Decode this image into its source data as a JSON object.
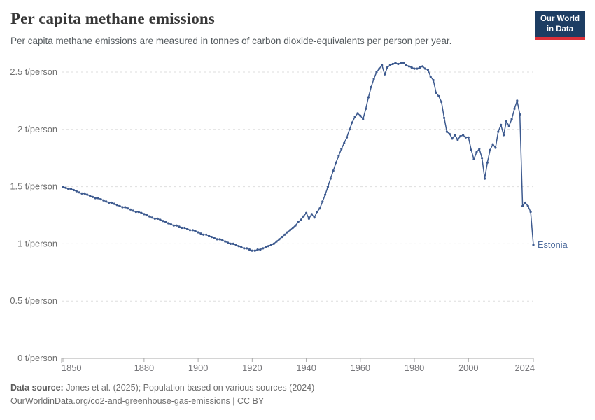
{
  "header": {
    "title": "Per capita methane emissions",
    "subtitle": "Per capita methane emissions are measured in tonnes of carbon dioxide-equivalents per person per year."
  },
  "logo": {
    "line1": "Our World",
    "line2": "in Data"
  },
  "chart_data": {
    "type": "line",
    "title": "Per capita methane emissions",
    "xlabel": "",
    "ylabel": "t/person",
    "xlim": [
      1850,
      2024
    ],
    "ylim": [
      0,
      2.5
    ],
    "grid": "horizontal-dashed",
    "legend_position": "end-of-line-label",
    "x_ticks": [
      {
        "value": 1850,
        "label": "1850"
      },
      {
        "value": 1880,
        "label": "1880"
      },
      {
        "value": 1900,
        "label": "1900"
      },
      {
        "value": 1920,
        "label": "1920"
      },
      {
        "value": 1940,
        "label": "1940"
      },
      {
        "value": 1960,
        "label": "1960"
      },
      {
        "value": 1980,
        "label": "1980"
      },
      {
        "value": 2000,
        "label": "2000"
      },
      {
        "value": 2024,
        "label": "2024"
      }
    ],
    "y_ticks": [
      {
        "value": 0,
        "label": "0 t/person"
      },
      {
        "value": 0.5,
        "label": "0.5 t/person"
      },
      {
        "value": 1,
        "label": "1 t/person"
      },
      {
        "value": 1.5,
        "label": "1.5 t/person"
      },
      {
        "value": 2,
        "label": "2 t/person"
      },
      {
        "value": 2.5,
        "label": "2.5 t/person"
      }
    ],
    "series": [
      {
        "name": "Estonia",
        "color": "#3d5a8f",
        "label_color": "#4c6a9c",
        "years": [
          1850,
          1851,
          1852,
          1853,
          1854,
          1855,
          1856,
          1857,
          1858,
          1859,
          1860,
          1861,
          1862,
          1863,
          1864,
          1865,
          1866,
          1867,
          1868,
          1869,
          1870,
          1871,
          1872,
          1873,
          1874,
          1875,
          1876,
          1877,
          1878,
          1879,
          1880,
          1881,
          1882,
          1883,
          1884,
          1885,
          1886,
          1887,
          1888,
          1889,
          1890,
          1891,
          1892,
          1893,
          1894,
          1895,
          1896,
          1897,
          1898,
          1899,
          1900,
          1901,
          1902,
          1903,
          1904,
          1905,
          1906,
          1907,
          1908,
          1909,
          1910,
          1911,
          1912,
          1913,
          1914,
          1915,
          1916,
          1917,
          1918,
          1919,
          1920,
          1921,
          1922,
          1923,
          1924,
          1925,
          1926,
          1927,
          1928,
          1929,
          1930,
          1931,
          1932,
          1933,
          1934,
          1935,
          1936,
          1937,
          1938,
          1939,
          1940,
          1941,
          1942,
          1943,
          1944,
          1945,
          1946,
          1947,
          1948,
          1949,
          1950,
          1951,
          1952,
          1953,
          1954,
          1955,
          1956,
          1957,
          1958,
          1959,
          1960,
          1961,
          1962,
          1963,
          1964,
          1965,
          1966,
          1967,
          1968,
          1969,
          1970,
          1971,
          1972,
          1973,
          1974,
          1975,
          1976,
          1977,
          1978,
          1979,
          1980,
          1981,
          1982,
          1983,
          1984,
          1985,
          1986,
          1987,
          1988,
          1989,
          1990,
          1991,
          1992,
          1993,
          1994,
          1995,
          1996,
          1997,
          1998,
          1999,
          2000,
          2001,
          2002,
          2003,
          2004,
          2005,
          2006,
          2007,
          2008,
          2009,
          2010,
          2011,
          2012,
          2013,
          2014,
          2015,
          2016,
          2017,
          2018,
          2019,
          2020,
          2021,
          2022,
          2023,
          2024
        ],
        "values": [
          1.5,
          1.49,
          1.48,
          1.48,
          1.47,
          1.46,
          1.45,
          1.44,
          1.44,
          1.43,
          1.42,
          1.41,
          1.4,
          1.4,
          1.39,
          1.38,
          1.37,
          1.36,
          1.36,
          1.35,
          1.34,
          1.33,
          1.32,
          1.32,
          1.31,
          1.3,
          1.29,
          1.28,
          1.28,
          1.27,
          1.26,
          1.25,
          1.24,
          1.23,
          1.22,
          1.22,
          1.21,
          1.2,
          1.19,
          1.18,
          1.17,
          1.16,
          1.16,
          1.15,
          1.14,
          1.14,
          1.13,
          1.12,
          1.12,
          1.11,
          1.1,
          1.09,
          1.08,
          1.08,
          1.07,
          1.06,
          1.05,
          1.04,
          1.04,
          1.03,
          1.02,
          1.01,
          1.0,
          1.0,
          0.99,
          0.98,
          0.97,
          0.96,
          0.96,
          0.95,
          0.94,
          0.94,
          0.95,
          0.95,
          0.96,
          0.97,
          0.98,
          0.99,
          1.0,
          1.02,
          1.04,
          1.06,
          1.08,
          1.1,
          1.12,
          1.14,
          1.16,
          1.19,
          1.21,
          1.24,
          1.27,
          1.22,
          1.26,
          1.23,
          1.28,
          1.31,
          1.37,
          1.43,
          1.5,
          1.57,
          1.64,
          1.71,
          1.77,
          1.83,
          1.88,
          1.93,
          2.0,
          2.06,
          2.11,
          2.14,
          2.12,
          2.09,
          2.18,
          2.28,
          2.37,
          2.44,
          2.5,
          2.53,
          2.56,
          2.48,
          2.54,
          2.56,
          2.57,
          2.58,
          2.57,
          2.58,
          2.58,
          2.56,
          2.55,
          2.54,
          2.53,
          2.53,
          2.54,
          2.55,
          2.53,
          2.52,
          2.46,
          2.43,
          2.32,
          2.29,
          2.24,
          2.1,
          1.98,
          1.96,
          1.92,
          1.95,
          1.91,
          1.94,
          1.95,
          1.93,
          1.93,
          1.82,
          1.74,
          1.8,
          1.83,
          1.75,
          1.57,
          1.71,
          1.82,
          1.87,
          1.84,
          1.98,
          2.04,
          1.95,
          2.07,
          2.03,
          2.09,
          2.18,
          2.25,
          2.13,
          1.33,
          1.36,
          1.33,
          1.28,
          0.99
        ]
      }
    ],
    "colors": {
      "grid": "#dedede",
      "axis": "#a8a8a8",
      "y_tick_label": "#6e6e6e",
      "x_tick_label": "#76767a"
    }
  },
  "footer": {
    "datasource_label": "Data source:",
    "datasource_text": " Jones et al. (2025); Population based on various sources (2024)",
    "license_line": "OurWorldinData.org/co2-and-greenhouse-gas-emissions | CC BY"
  }
}
